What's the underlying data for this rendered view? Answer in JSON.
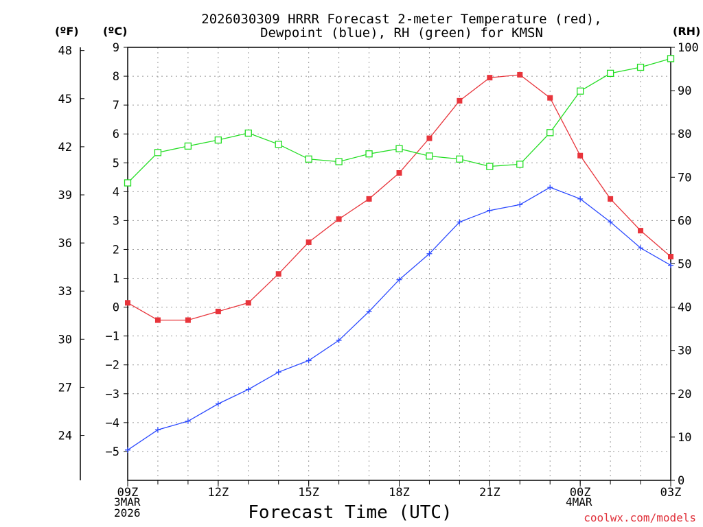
{
  "title_line1": "2026030309 HRRR Forecast 2-meter Temperature (red),",
  "title_line2": "Dewpoint (blue), RH (green) for KMSN",
  "unit_f": "(ºF)",
  "unit_c": "(ºC)",
  "unit_rh": "(RH)",
  "x_title": "Forecast Time (UTC)",
  "credit": "coolwx.com/models",
  "date_start": {
    "day": "3MAR",
    "year": "2026"
  },
  "date_next": "4MAR",
  "colors": {
    "temperature": "#e8343b",
    "dewpoint": "#2b49ff",
    "rh": "#22dd22",
    "grid": "#999999"
  },
  "chart_data": {
    "type": "line",
    "title": "2026030309 HRRR Forecast 2-meter Temperature (red), Dewpoint (blue), RH (green) for KMSN",
    "xlabel": "Forecast Time (UTC)",
    "x": [
      0,
      1,
      2,
      3,
      4,
      5,
      6,
      7,
      8,
      9,
      10,
      11,
      12,
      13,
      14,
      15,
      16,
      17,
      18
    ],
    "x_ticks": [
      {
        "x": 0,
        "label": "09Z"
      },
      {
        "x": 3,
        "label": "12Z"
      },
      {
        "x": 6,
        "label": "15Z"
      },
      {
        "x": 9,
        "label": "18Z"
      },
      {
        "x": 12,
        "label": "21Z"
      },
      {
        "x": 15,
        "label": "00Z"
      },
      {
        "x": 18,
        "label": "03Z"
      }
    ],
    "xlim": [
      0,
      18
    ],
    "ylim_c": [
      -6,
      9
    ],
    "y_c_ticks": [
      -5,
      -4,
      -3,
      -2,
      -1,
      0,
      1,
      2,
      3,
      4,
      5,
      6,
      7,
      8,
      9
    ],
    "y_c_tick_labels": [
      "−5",
      "−4",
      "−3",
      "−2",
      "−1",
      "0",
      "1",
      "2",
      "3",
      "4",
      "5",
      "6",
      "7",
      "8",
      "9"
    ],
    "y_f_ticks": [
      24,
      27,
      30,
      33,
      36,
      39,
      42,
      45,
      48
    ],
    "y_f_tick_labels": [
      "24",
      "27",
      "30",
      "33",
      "36",
      "39",
      "42",
      "45",
      "48"
    ],
    "ylim_rh": [
      0,
      100
    ],
    "y_rh_ticks": [
      0,
      10,
      20,
      30,
      40,
      50,
      60,
      70,
      80,
      90,
      100
    ],
    "y_rh_tick_labels": [
      "0",
      "10",
      "20",
      "30",
      "40",
      "50",
      "60",
      "70",
      "80",
      "90",
      "100"
    ],
    "grid": true,
    "series": [
      {
        "name": "Temperature",
        "axis": "c",
        "marker": "filled-square",
        "values": [
          0.15,
          -0.45,
          -0.45,
          -0.15,
          0.15,
          1.15,
          2.25,
          3.05,
          3.75,
          4.65,
          5.85,
          7.15,
          7.95,
          8.05,
          7.25,
          5.25,
          3.75,
          2.65,
          1.75
        ]
      },
      {
        "name": "Dewpoint",
        "axis": "c",
        "marker": "plus",
        "values": [
          -4.95,
          -4.25,
          -3.95,
          -3.35,
          -2.85,
          -2.25,
          -1.85,
          -1.15,
          -0.15,
          0.95,
          1.85,
          2.95,
          3.35,
          3.55,
          4.15,
          3.75,
          2.95,
          2.05,
          1.45
        ]
      },
      {
        "name": "RH",
        "axis": "rh",
        "marker": "open-square",
        "values": [
          68.7,
          75.7,
          77.2,
          78.6,
          80.2,
          77.6,
          74.2,
          73.6,
          75.4,
          76.6,
          74.9,
          74.2,
          72.5,
          73.0,
          80.3,
          89.9,
          94.0,
          95.4,
          97.4
        ]
      }
    ]
  }
}
